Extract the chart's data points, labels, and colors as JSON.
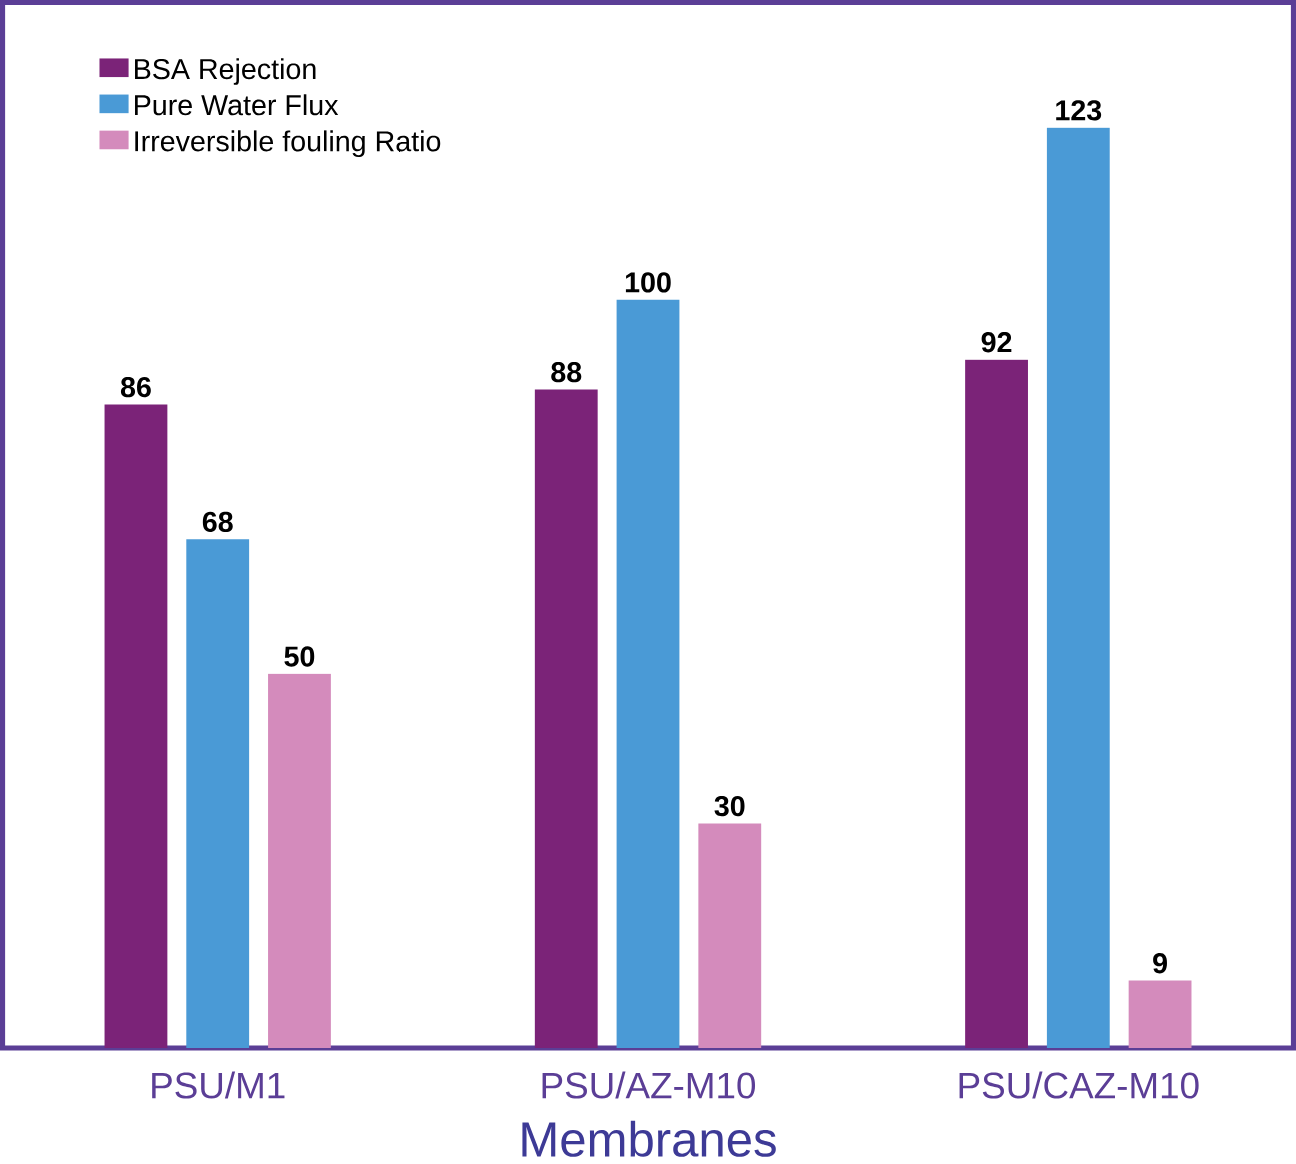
{
  "chart_data": {
    "type": "bar",
    "xlabel": "Membranes",
    "categories": [
      "PSU/M1",
      "PSU/AZ-M10",
      "PSU/CAZ-M10"
    ],
    "series": [
      {
        "name": "BSA Rejection",
        "color": "#7b2378",
        "values": [
          86,
          88,
          92
        ]
      },
      {
        "name": "Pure Water Flux",
        "color": "#4a9ad6",
        "values": [
          68,
          100,
          123
        ]
      },
      {
        "name": "Irreversible fouling Ratio",
        "color": "#d48bbc",
        "values": [
          50,
          30,
          9
        ]
      }
    ],
    "data_labels": true,
    "legend": "top left",
    "grid": false
  }
}
